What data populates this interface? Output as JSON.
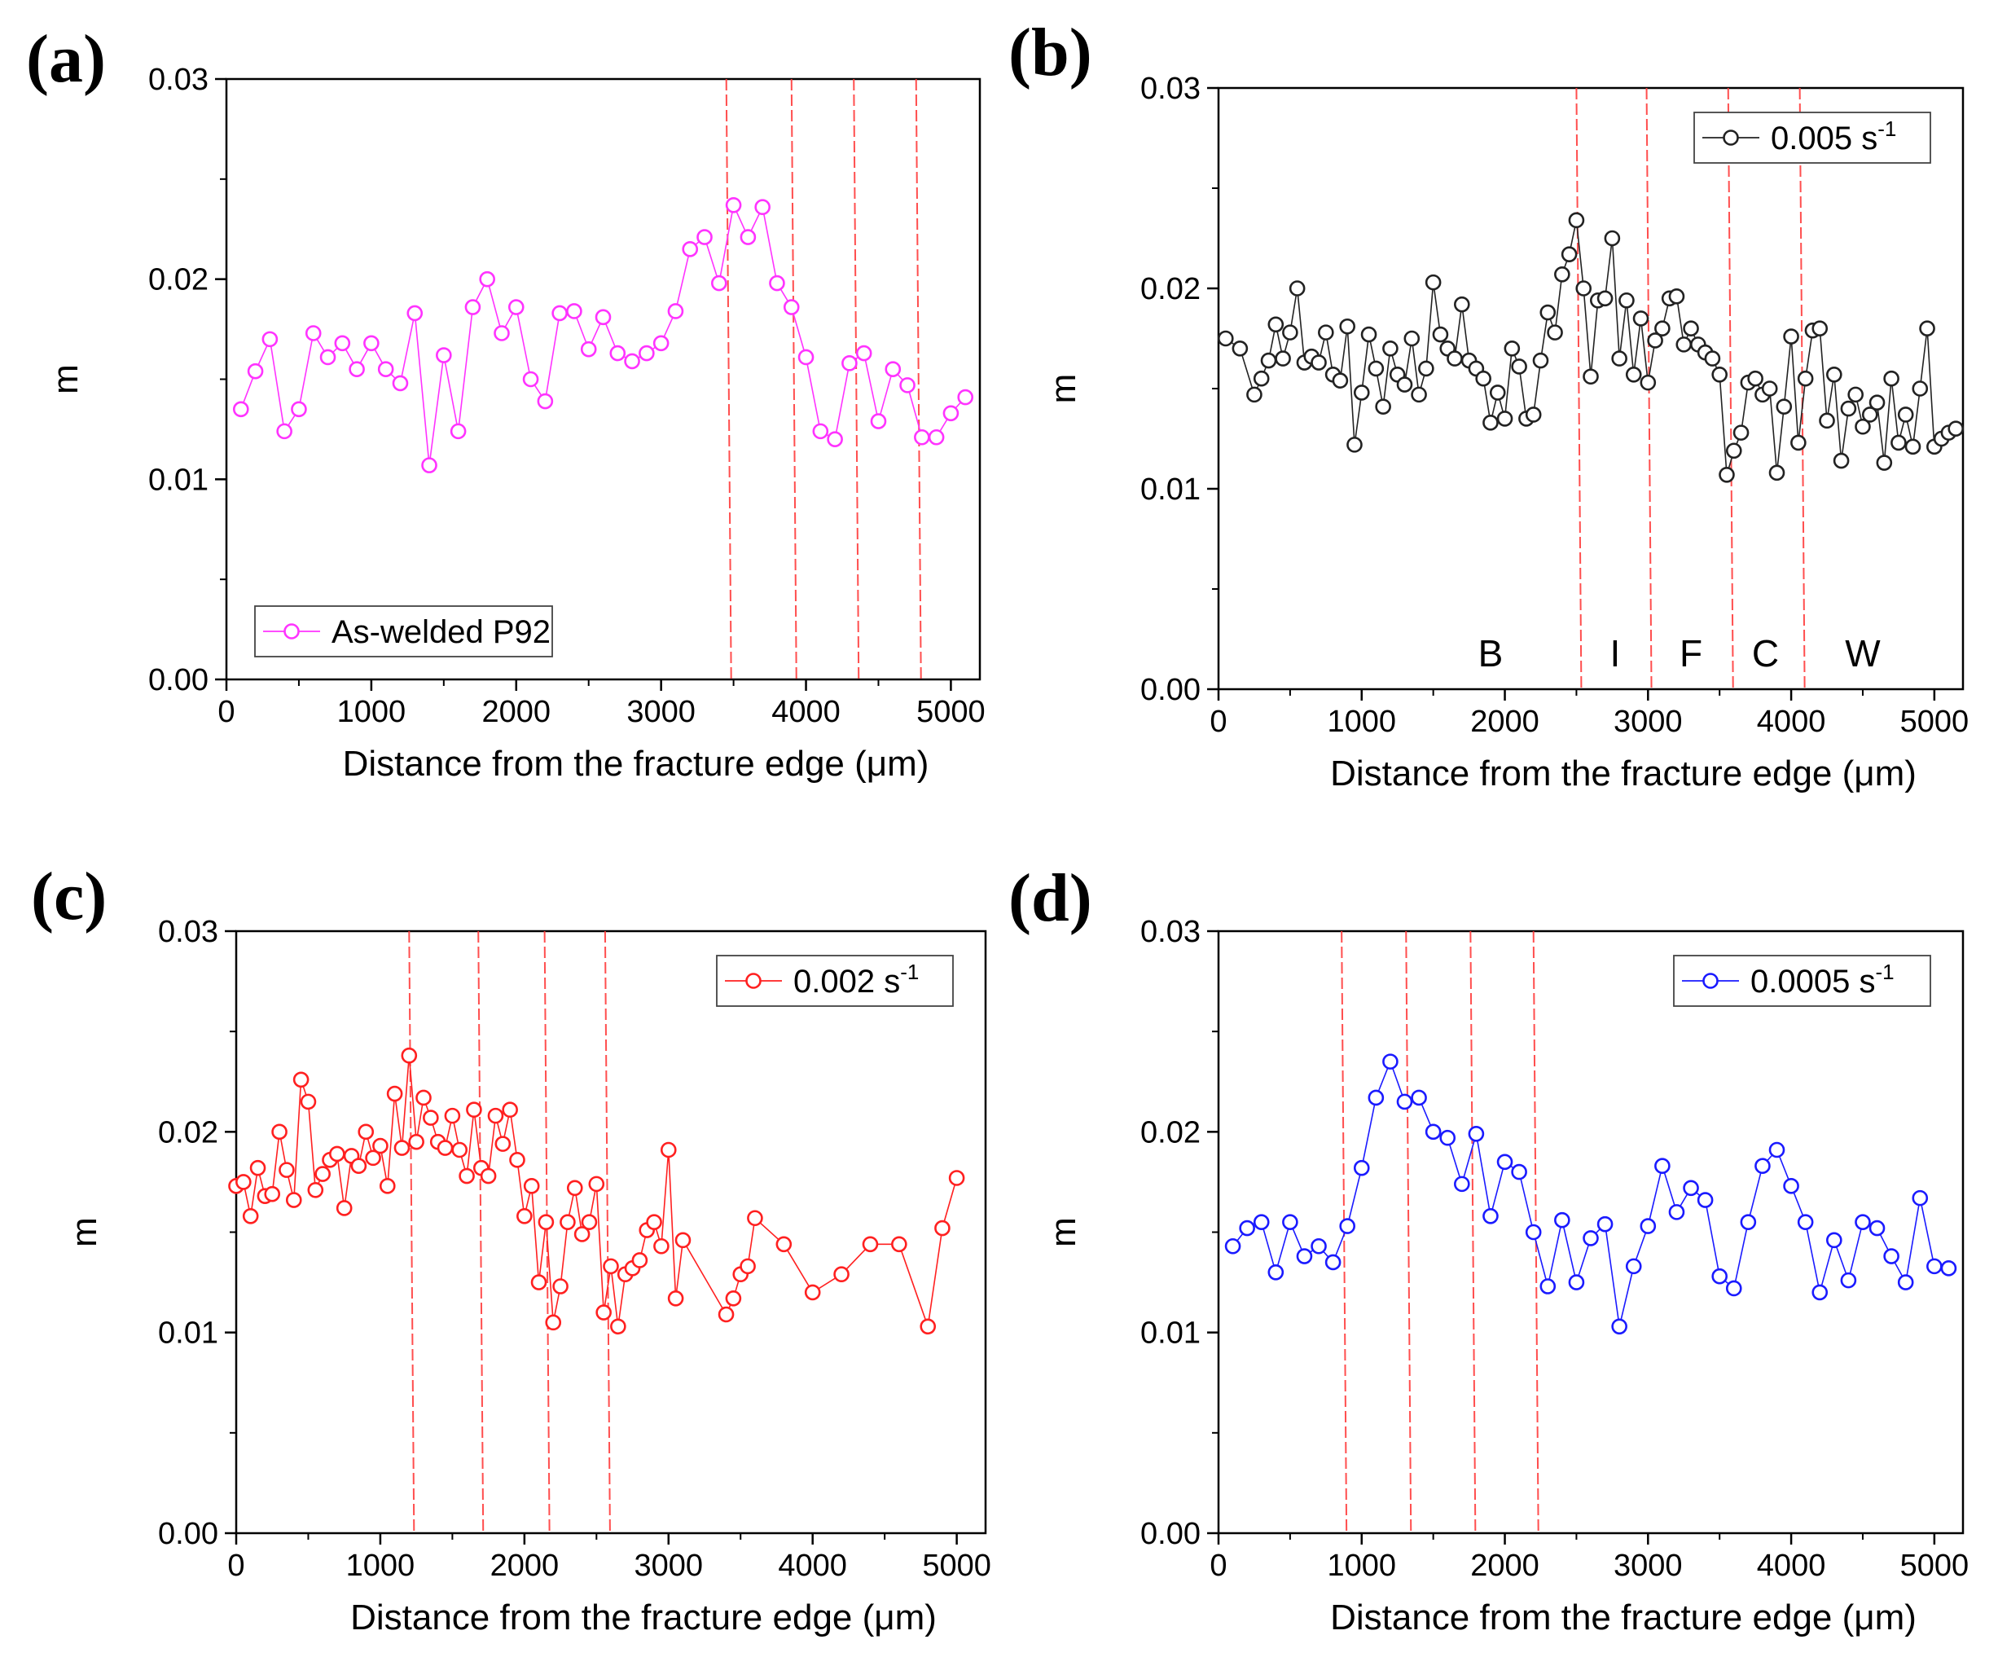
{
  "figure": {
    "panels": [
      {
        "letter": "(a)",
        "legend": {
          "text": "As-welded P92",
          "superscript": "",
          "placement": "bottom-left"
        },
        "color": "#ff33ff",
        "xlabel": "Distance from the fracture edge (μm)",
        "ylabel": "m",
        "xticks": [
          "0",
          "1000",
          "2000",
          "3000",
          "4000",
          "5000"
        ],
        "yticks": [
          "0.00",
          "0.01",
          "0.02",
          "0.03"
        ],
        "region_labels": []
      },
      {
        "letter": "(b)",
        "legend": {
          "text": "0.005 s",
          "superscript": "-1",
          "placement": "top-right"
        },
        "color": "#222222",
        "xlabel": "Distance from the fracture edge (μm)",
        "ylabel": "m",
        "xticks": [
          "0",
          "1000",
          "2000",
          "3000",
          "4000",
          "5000"
        ],
        "yticks": [
          "0.00",
          "0.01",
          "0.02",
          "0.03"
        ],
        "region_labels": [
          {
            "text": "B",
            "x": 1900
          },
          {
            "text": "I",
            "x": 2770
          },
          {
            "text": "F",
            "x": 3300
          },
          {
            "text": "C",
            "x": 3820
          },
          {
            "text": "W",
            "x": 4500
          }
        ]
      },
      {
        "letter": "(c)",
        "legend": {
          "text": "0.002 s",
          "superscript": "-1",
          "placement": "top-right"
        },
        "color": "#ff2020",
        "xlabel": "Distance from the fracture edge (μm)",
        "ylabel": "m",
        "xticks": [
          "0",
          "1000",
          "2000",
          "3000",
          "4000",
          "5000"
        ],
        "yticks": [
          "0.00",
          "0.01",
          "0.02",
          "0.03"
        ],
        "region_labels": []
      },
      {
        "letter": "(d)",
        "legend": {
          "text": "0.0005 s",
          "superscript": "-1",
          "placement": "top-right"
        },
        "color": "#1a1aff",
        "xlabel": "Distance from the fracture edge (μm)",
        "ylabel": "m",
        "xticks": [
          "0",
          "1000",
          "2000",
          "3000",
          "4000",
          "5000"
        ],
        "yticks": [
          "0.00",
          "0.01",
          "0.02",
          "0.03"
        ],
        "region_labels": []
      }
    ]
  },
  "chart_data": [
    {
      "type": "line",
      "title": "(a)",
      "series": [
        {
          "name": "As-welded P92",
          "x": [
            100,
            200,
            300,
            400,
            500,
            600,
            700,
            800,
            900,
            1000,
            1100,
            1200,
            1300,
            1400,
            1500,
            1600,
            1700,
            1800,
            1900,
            2000,
            2100,
            2200,
            2300,
            2400,
            2500,
            2600,
            2700,
            2800,
            2900,
            3000,
            3100,
            3200,
            3300,
            3400,
            3500,
            3600,
            3700,
            3800,
            3900,
            4000,
            4100,
            4200,
            4300,
            4400,
            4500,
            4600,
            4700,
            4800,
            4900,
            5000,
            5100
          ],
          "y": [
            0.0135,
            0.0154,
            0.017,
            0.0124,
            0.0135,
            0.0173,
            0.0161,
            0.0168,
            0.0155,
            0.0168,
            0.0155,
            0.0148,
            0.0183,
            0.0107,
            0.0162,
            0.0124,
            0.0186,
            0.02,
            0.0173,
            0.0186,
            0.015,
            0.0139,
            0.0183,
            0.0184,
            0.0165,
            0.0181,
            0.0163,
            0.0159,
            0.0163,
            0.0168,
            0.0184,
            0.0215,
            0.0221,
            0.0198,
            0.0237,
            0.0221,
            0.0236,
            0.0198,
            0.0186,
            0.0161,
            0.0124,
            0.012,
            0.0158,
            0.0163,
            0.0129,
            0.0155,
            0.0147,
            0.0121,
            0.0121,
            0.0133,
            0.0141
          ]
        }
      ],
      "vlines": [
        3450,
        3900,
        4330,
        4760
      ],
      "xlabel": "Distance from the fracture edge (μm)",
      "ylabel": "m",
      "xlim": [
        0,
        5200
      ],
      "ylim": [
        0,
        0.03
      ]
    },
    {
      "type": "line",
      "title": "(b)",
      "series": [
        {
          "name": "0.005 s-1",
          "x": [
            50,
            150,
            250,
            300,
            350,
            400,
            450,
            500,
            550,
            600,
            650,
            700,
            750,
            800,
            850,
            900,
            950,
            1000,
            1050,
            1100,
            1150,
            1200,
            1250,
            1300,
            1350,
            1400,
            1450,
            1500,
            1550,
            1600,
            1650,
            1700,
            1750,
            1800,
            1850,
            1900,
            1950,
            2000,
            2050,
            2100,
            2150,
            2200,
            2250,
            2300,
            2350,
            2400,
            2450,
            2500,
            2550,
            2600,
            2650,
            2700,
            2750,
            2800,
            2850,
            2900,
            2950,
            3000,
            3050,
            3100,
            3150,
            3200,
            3250,
            3300,
            3350,
            3400,
            3450,
            3500,
            3550,
            3600,
            3650,
            3700,
            3750,
            3800,
            3850,
            3900,
            3950,
            4000,
            4050,
            4100,
            4150,
            4200,
            4250,
            4300,
            4350,
            4400,
            4450,
            4500,
            4550,
            4600,
            4650,
            4700,
            4750,
            4800,
            4850,
            4900,
            4950,
            5000,
            5050,
            5100,
            5150
          ],
          "y": [
            0.0175,
            0.017,
            0.0147,
            0.0155,
            0.0164,
            0.0182,
            0.0165,
            0.0178,
            0.02,
            0.0163,
            0.0166,
            0.0163,
            0.0178,
            0.0157,
            0.0154,
            0.0181,
            0.0122,
            0.0148,
            0.0177,
            0.016,
            0.0141,
            0.017,
            0.0157,
            0.0152,
            0.0175,
            0.0147,
            0.016,
            0.0203,
            0.0177,
            0.017,
            0.0165,
            0.0192,
            0.0164,
            0.016,
            0.0155,
            0.0133,
            0.0148,
            0.0135,
            0.017,
            0.0161,
            0.0135,
            0.0137,
            0.0164,
            0.0188,
            0.0178,
            0.0207,
            0.0217,
            0.0234,
            0.02,
            0.0156,
            0.0194,
            0.0195,
            0.0225,
            0.0165,
            0.0194,
            0.0157,
            0.0185,
            0.0153,
            0.0174,
            0.018,
            0.0195,
            0.0196,
            0.0172,
            0.018,
            0.0172,
            0.0168,
            0.0165,
            0.0157,
            0.0107,
            0.0119,
            0.0128,
            0.0153,
            0.0155,
            0.0147,
            0.015,
            0.0108,
            0.0141,
            0.0176,
            0.0123,
            0.0155,
            0.0179,
            0.018,
            0.0134,
            0.0157,
            0.0114,
            0.014,
            0.0147,
            0.0131,
            0.0137,
            0.0143,
            0.0113,
            0.0155,
            0.0123,
            0.0137,
            0.0121,
            0.015,
            0.018,
            0.0121,
            0.0125,
            0.0128,
            0.013
          ],
          "y_note": "approximate"
        }
      ],
      "vlines": [
        2500,
        2990,
        3560,
        4060
      ],
      "xlabel": "Distance from the fracture edge (μm)",
      "ylabel": "m",
      "xlim": [
        0,
        5200
      ],
      "ylim": [
        0,
        0.03
      ]
    },
    {
      "type": "line",
      "title": "(c)",
      "series": [
        {
          "name": "0.002 s-1",
          "x": [
            0,
            50,
            100,
            150,
            200,
            250,
            300,
            350,
            400,
            450,
            500,
            550,
            600,
            650,
            700,
            750,
            800,
            850,
            900,
            950,
            1000,
            1050,
            1100,
            1150,
            1200,
            1250,
            1300,
            1350,
            1400,
            1450,
            1500,
            1550,
            1600,
            1650,
            1700,
            1750,
            1800,
            1850,
            1900,
            1950,
            2000,
            2050,
            2100,
            2150,
            2200,
            2250,
            2300,
            2350,
            2400,
            2450,
            2500,
            2550,
            2600,
            2650,
            2700,
            2750,
            2800,
            2850,
            2900,
            2950,
            3000,
            3050,
            3100,
            3400,
            3450,
            3500,
            3550,
            3600,
            3800,
            4000,
            4200,
            4400,
            4600,
            4800,
            4900,
            5000
          ],
          "y": [
            0.0173,
            0.0175,
            0.0158,
            0.0182,
            0.0168,
            0.0169,
            0.02,
            0.0181,
            0.0166,
            0.0226,
            0.0215,
            0.0171,
            0.0179,
            0.0186,
            0.0189,
            0.0162,
            0.0188,
            0.0183,
            0.02,
            0.0187,
            0.0193,
            0.0173,
            0.0219,
            0.0192,
            0.0238,
            0.0195,
            0.0217,
            0.0207,
            0.0195,
            0.0192,
            0.0208,
            0.0191,
            0.0178,
            0.0211,
            0.0182,
            0.0178,
            0.0208,
            0.0194,
            0.0211,
            0.0186,
            0.0158,
            0.0173,
            0.0125,
            0.0155,
            0.0105,
            0.0123,
            0.0155,
            0.0172,
            0.0149,
            0.0155,
            0.0174,
            0.011,
            0.0133,
            0.0103,
            0.0129,
            0.0132,
            0.0136,
            0.0151,
            0.0155,
            0.0143,
            0.0191,
            0.0117,
            0.0146,
            0.0109,
            0.0117,
            0.0129,
            0.0133,
            0.0157,
            0.0144,
            0.012,
            0.0129,
            0.0144,
            0.0144,
            0.0103,
            0.0152,
            0.0177
          ],
          "y_note": "approximate"
        }
      ],
      "vlines": [
        1200,
        1680,
        2140,
        2560
      ],
      "xlabel": "Distance from the fracture edge (μm)",
      "ylabel": "m",
      "xlim": [
        0,
        5200
      ],
      "ylim": [
        0,
        0.03
      ]
    },
    {
      "type": "line",
      "title": "(d)",
      "series": [
        {
          "name": "0.0005 s-1",
          "x": [
            100,
            200,
            300,
            400,
            500,
            600,
            700,
            800,
            900,
            1000,
            1100,
            1200,
            1300,
            1400,
            1500,
            1600,
            1700,
            1800,
            1900,
            2000,
            2100,
            2200,
            2300,
            2400,
            2500,
            2600,
            2700,
            2800,
            2900,
            3000,
            3100,
            3200,
            3300,
            3400,
            3500,
            3600,
            3700,
            3800,
            3900,
            4000,
            4100,
            4200,
            4300,
            4400,
            4500,
            4600,
            4700,
            4800,
            4900,
            5000,
            5100
          ],
          "y": [
            0.0143,
            0.0152,
            0.0155,
            0.013,
            0.0155,
            0.0138,
            0.0143,
            0.0135,
            0.0153,
            0.0182,
            0.0217,
            0.0235,
            0.0215,
            0.0217,
            0.02,
            0.0197,
            0.0174,
            0.0199,
            0.0158,
            0.0185,
            0.018,
            0.015,
            0.0123,
            0.0156,
            0.0125,
            0.0147,
            0.0154,
            0.0103,
            0.0133,
            0.0153,
            0.0183,
            0.016,
            0.0172,
            0.0166,
            0.0128,
            0.0122,
            0.0155,
            0.0183,
            0.0191,
            0.0173,
            0.0155,
            0.012,
            0.0146,
            0.0126,
            0.0155,
            0.0152,
            0.0138,
            0.0125,
            0.0167,
            0.0133,
            0.0132
          ]
        }
      ],
      "vlines": [
        860,
        1310,
        1760,
        2200
      ],
      "xlabel": "Distance from the fracture edge (μm)",
      "ylabel": "m",
      "xlim": [
        0,
        5200
      ],
      "ylim": [
        0,
        0.03
      ]
    }
  ]
}
